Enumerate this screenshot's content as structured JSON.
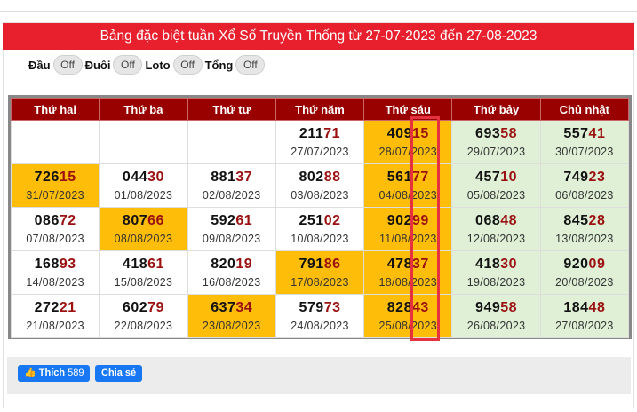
{
  "title": "Bảng đặc biệt tuần Xổ Số Truyền Thống từ 27-07-2023 đến 27-08-2023",
  "toggles": [
    {
      "label": "Đầu",
      "state": "Off"
    },
    {
      "label": "Đuôi",
      "state": "Off"
    },
    {
      "label": "Loto",
      "state": "Off"
    },
    {
      "label": "Tổng",
      "state": "Off"
    }
  ],
  "headers": [
    "Thứ hai",
    "Thứ ba",
    "Thứ tư",
    "Thứ năm",
    "Thứ sáu",
    "Thứ bảy",
    "Chủ nhật"
  ],
  "rows": [
    [
      null,
      null,
      null,
      {
        "h": "211",
        "t": "71",
        "d": "27/07/2023"
      },
      {
        "h": "409",
        "t": "15",
        "d": "28/07/2023",
        "hl": true
      },
      {
        "h": "693",
        "t": "58",
        "d": "29/07/2023"
      },
      {
        "h": "557",
        "t": "41",
        "d": "30/07/2023"
      }
    ],
    [
      {
        "h": "726",
        "t": "15",
        "d": "31/07/2023",
        "hl": true
      },
      {
        "h": "044",
        "t": "30",
        "d": "01/08/2023"
      },
      {
        "h": "881",
        "t": "37",
        "d": "02/08/2023"
      },
      {
        "h": "802",
        "t": "88",
        "d": "03/08/2023"
      },
      {
        "h": "561",
        "t": "77",
        "d": "04/08/2023",
        "hl": true
      },
      {
        "h": "457",
        "t": "10",
        "d": "05/08/2023"
      },
      {
        "h": "749",
        "t": "23",
        "d": "06/08/2023"
      }
    ],
    [
      {
        "h": "086",
        "t": "72",
        "d": "07/08/2023"
      },
      {
        "h": "807",
        "t": "66",
        "d": "08/08/2023",
        "hl": true
      },
      {
        "h": "592",
        "t": "61",
        "d": "09/08/2023"
      },
      {
        "h": "251",
        "t": "02",
        "d": "10/08/2023"
      },
      {
        "h": "902",
        "t": "99",
        "d": "11/08/2023",
        "hl": true
      },
      {
        "h": "068",
        "t": "48",
        "d": "12/08/2023"
      },
      {
        "h": "845",
        "t": "28",
        "d": "13/08/2023"
      }
    ],
    [
      {
        "h": "168",
        "t": "93",
        "d": "14/08/2023"
      },
      {
        "h": "418",
        "t": "61",
        "d": "15/08/2023"
      },
      {
        "h": "820",
        "t": "19",
        "d": "16/08/2023"
      },
      {
        "h": "791",
        "t": "86",
        "d": "17/08/2023",
        "hl": true
      },
      {
        "h": "478",
        "t": "37",
        "d": "18/08/2023",
        "hl": true
      },
      {
        "h": "418",
        "t": "30",
        "d": "19/08/2023"
      },
      {
        "h": "920",
        "t": "09",
        "d": "20/08/2023"
      }
    ],
    [
      {
        "h": "272",
        "t": "21",
        "d": "21/08/2023"
      },
      {
        "h": "602",
        "t": "79",
        "d": "22/08/2023"
      },
      {
        "h": "637",
        "t": "34",
        "d": "23/08/2023",
        "hl": true
      },
      {
        "h": "579",
        "t": "73",
        "d": "24/08/2023"
      },
      {
        "h": "828",
        "t": "43",
        "d": "25/08/2023",
        "hl": true
      },
      {
        "h": "949",
        "t": "58",
        "d": "26/08/2023"
      },
      {
        "h": "184",
        "t": "48",
        "d": "27/08/2023"
      }
    ]
  ],
  "colors": {
    "highlight": "#fdbd08",
    "weekend": "#dff0d6",
    "header": "#990000",
    "title_bar": "#e8202e",
    "tail": "#9b1010"
  },
  "social": {
    "like_label": "Thích",
    "like_count": "589",
    "share_label": "Chia sẻ"
  }
}
